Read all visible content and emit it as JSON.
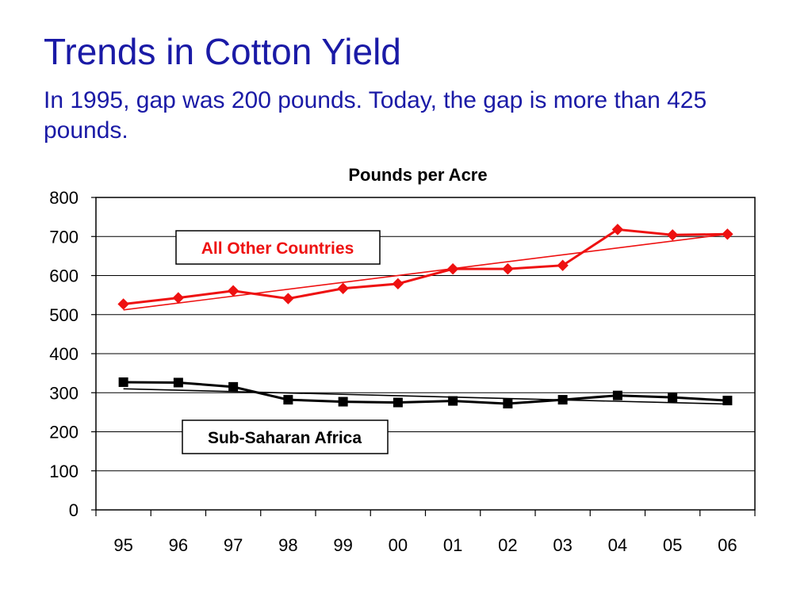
{
  "slide": {
    "title": "Trends in Cotton Yield",
    "subtitle": "In 1995, gap was 200 pounds. Today, the gap is more than 425 pounds."
  },
  "colors": {
    "title": "#1a1aa6",
    "series_other": "#ee1111",
    "series_ssa": "#000000"
  },
  "chart_data": {
    "type": "line",
    "title": "Pounds per Acre",
    "xlabel": "",
    "ylabel": "",
    "categories": [
      "95",
      "96",
      "97",
      "98",
      "99",
      "00",
      "01",
      "02",
      "03",
      "04",
      "05",
      "06"
    ],
    "ylim": [
      0,
      800
    ],
    "yticks": [
      "0",
      "100",
      "200",
      "300",
      "400",
      "500",
      "600",
      "700",
      "800"
    ],
    "grid": true,
    "series": [
      {
        "name": "All Other Countries",
        "marker": "diamond",
        "values": [
          527,
          543,
          561,
          541,
          567,
          579,
          617,
          617,
          626,
          718,
          704,
          706
        ],
        "trend": [
          512,
          706
        ]
      },
      {
        "name": "Sub-Saharan Africa",
        "marker": "square",
        "values": [
          327,
          326,
          315,
          282,
          277,
          275,
          279,
          272,
          282,
          293,
          288,
          280
        ],
        "trend": [
          310,
          271
        ]
      }
    ]
  }
}
